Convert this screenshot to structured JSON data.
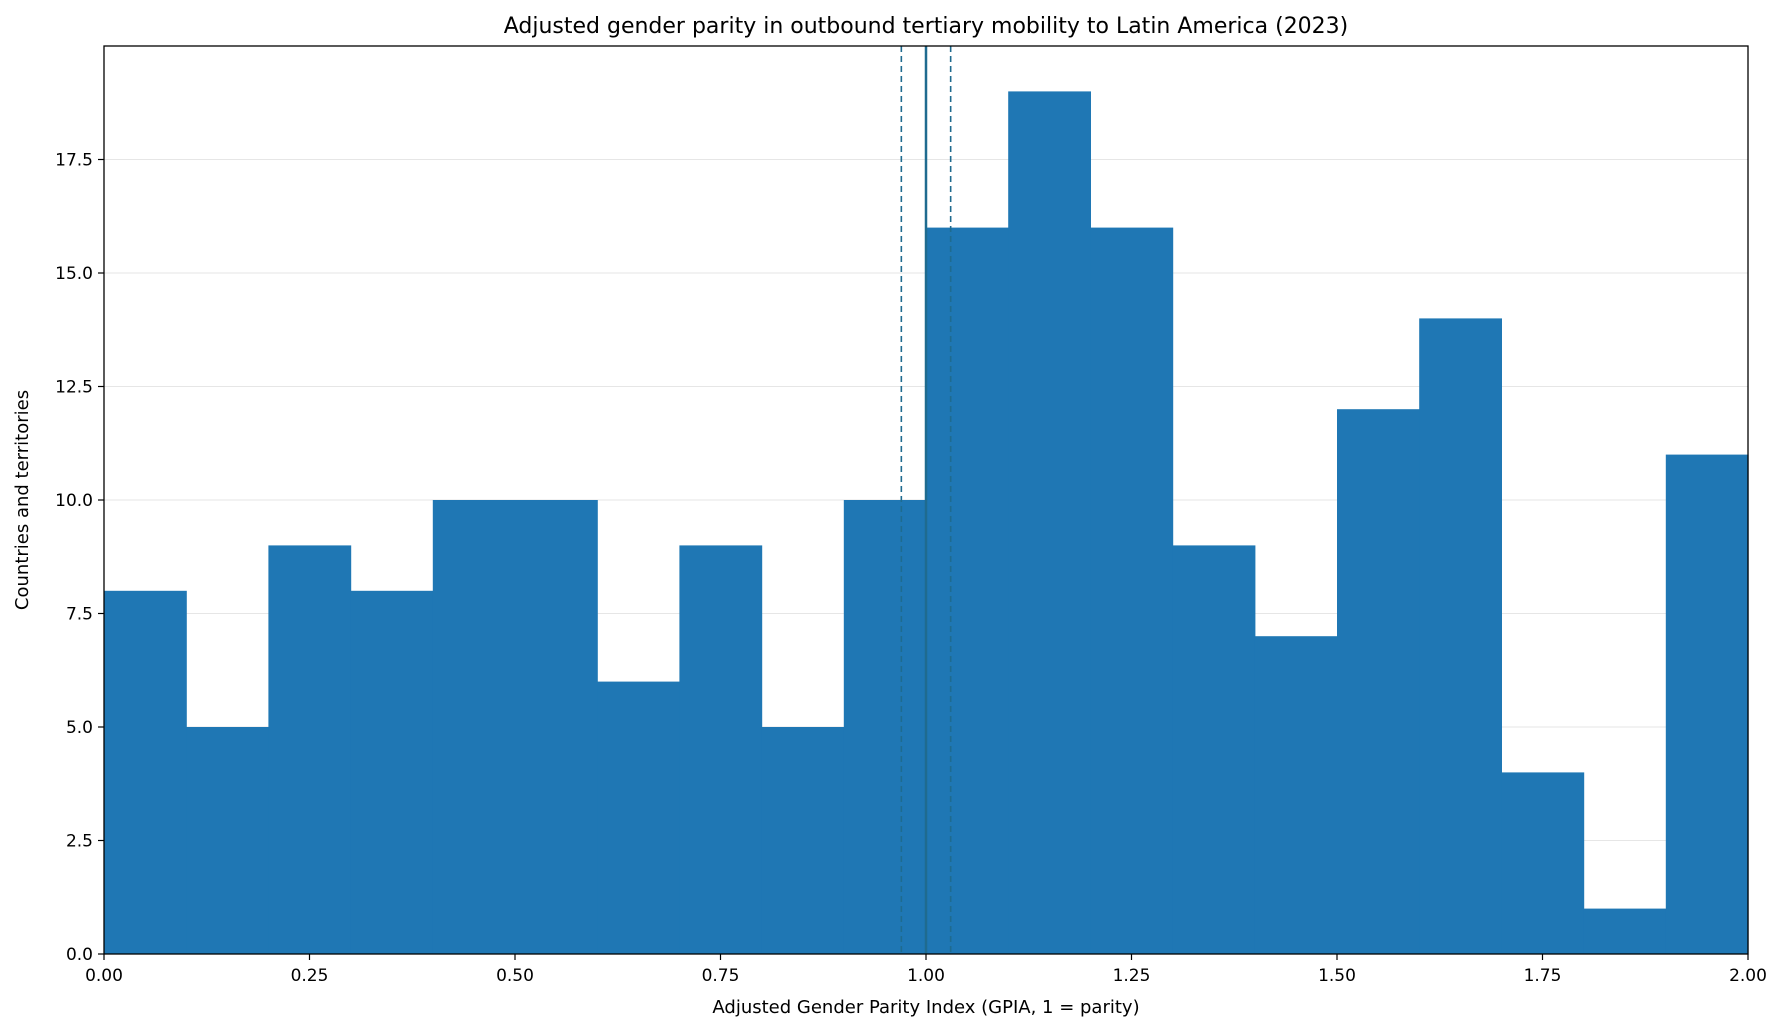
{
  "chart_data": {
    "type": "bar",
    "subtype": "histogram",
    "title": "Adjusted gender parity in outbound tertiary mobility to Latin America (2023)",
    "xlabel": "Adjusted Gender Parity Index (GPIA, 1 = parity)",
    "ylabel": "Countries and territories",
    "xlim": [
      0,
      2.0
    ],
    "ylim": [
      0,
      20
    ],
    "xticks": [
      "0.00",
      "0.25",
      "0.50",
      "0.75",
      "1.00",
      "1.25",
      "1.50",
      "1.75",
      "2.00"
    ],
    "yticks": [
      "0.0",
      "2.5",
      "5.0",
      "7.5",
      "10.0",
      "12.5",
      "15.0",
      "17.5"
    ],
    "bin_edges": [
      0.0,
      0.1,
      0.2,
      0.3,
      0.4,
      0.5,
      0.6,
      0.7,
      0.8,
      0.9,
      1.0,
      1.1,
      1.2,
      1.3,
      1.4,
      1.5,
      1.6,
      1.7,
      1.8,
      1.9,
      2.0
    ],
    "counts": [
      8,
      5,
      9,
      8,
      10,
      10,
      6,
      9,
      5,
      10,
      16,
      19,
      16,
      9,
      7,
      12,
      14,
      4,
      1,
      11
    ],
    "reference_lines": [
      {
        "x": 1.0,
        "style": "solid"
      },
      {
        "x": 0.97,
        "style": "dashed"
      },
      {
        "x": 1.03,
        "style": "dashed"
      }
    ],
    "grid": "y-axis, light",
    "color": "#1f77b4",
    "line_color": "#1f6b8f"
  }
}
